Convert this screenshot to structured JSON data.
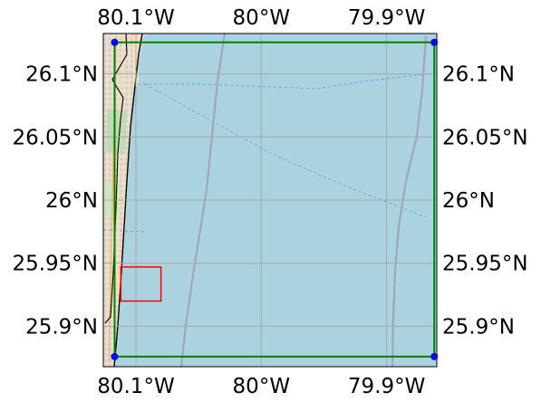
{
  "map": {
    "extent": {
      "lon_min": -80.126,
      "lon_max": -79.86,
      "lat_min": 25.868,
      "lat_max": 26.132
    },
    "lon_ticks": [
      {
        "value": -80.1,
        "label": "80.1°W"
      },
      {
        "value": -80.0,
        "label": "80°W"
      },
      {
        "value": -79.9,
        "label": "79.9°W"
      }
    ],
    "lat_ticks": [
      {
        "value": 26.1,
        "label": "26.1°N"
      },
      {
        "value": 26.05,
        "label": "26.05°N"
      },
      {
        "value": 26.0,
        "label": "26°N"
      },
      {
        "value": 25.95,
        "label": "25.95°N"
      },
      {
        "value": 25.9,
        "label": "25.9°N"
      }
    ],
    "grid": true,
    "colors": {
      "ocean": "#aad3df",
      "land": "#f2efe9",
      "green_box": "#008000",
      "red_box": "#ff0000",
      "corner_points": "#0000ff",
      "coastline": "#000000",
      "shipping_lane": "#9d9cbe",
      "ferry_route": "#6f9fe8"
    },
    "green_box": {
      "lon_min": -80.117,
      "lon_max": -79.862,
      "lat_min": 25.876,
      "lat_max": 26.125
    },
    "red_box": {
      "lon_min": -80.112,
      "lon_max": -80.08,
      "lat_min": 25.92,
      "lat_max": 25.947
    },
    "corner_points": [
      {
        "lon": -80.117,
        "lat": 26.125
      },
      {
        "lon": -79.862,
        "lat": 26.125
      },
      {
        "lon": -80.117,
        "lat": 25.876
      },
      {
        "lon": -79.862,
        "lat": 25.876
      }
    ]
  }
}
